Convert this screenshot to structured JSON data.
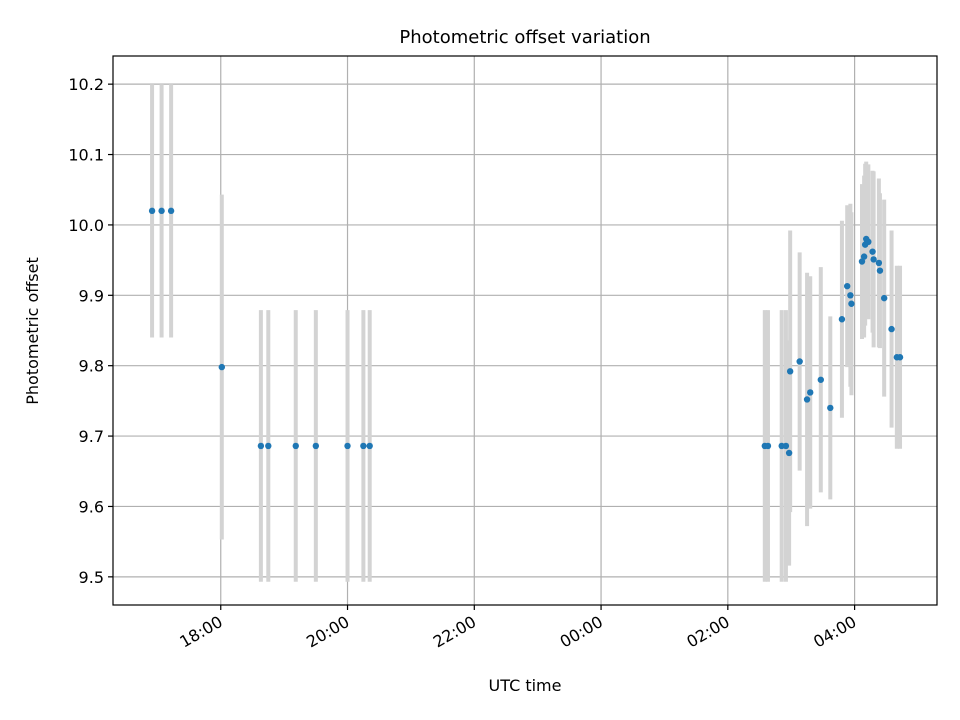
{
  "chart_data": {
    "type": "scatter",
    "title": "Photometric offset variation",
    "xlabel": "UTC time",
    "ylabel": "Photometric offset",
    "xlim_hours": [
      16.3,
      29.3
    ],
    "ylim": [
      9.46,
      10.24
    ],
    "x_ticks": [
      {
        "h": 18,
        "label": "18:00"
      },
      {
        "h": 20,
        "label": "20:00"
      },
      {
        "h": 22,
        "label": "22:00"
      },
      {
        "h": 24,
        "label": "00:00"
      },
      {
        "h": 26,
        "label": "02:00"
      },
      {
        "h": 28,
        "label": "04:00"
      }
    ],
    "y_ticks": [
      {
        "v": 9.5,
        "label": "9.5"
      },
      {
        "v": 9.6,
        "label": "9.6"
      },
      {
        "v": 9.7,
        "label": "9.7"
      },
      {
        "v": 9.8,
        "label": "9.8"
      },
      {
        "v": 9.9,
        "label": "9.9"
      },
      {
        "v": 10.0,
        "label": "10.0"
      },
      {
        "v": 10.1,
        "label": "10.1"
      },
      {
        "v": 10.2,
        "label": "10.2"
      }
    ],
    "grid": true,
    "colors": {
      "points": "#1f77b4",
      "errorbars": "#d3d3d3"
    },
    "points": [
      {
        "t": "16:55",
        "y": 10.02,
        "err": 0.18
      },
      {
        "t": "17:04",
        "y": 10.02,
        "err": 0.18
      },
      {
        "t": "17:13",
        "y": 10.02,
        "err": 0.18
      },
      {
        "t": "18:01",
        "y": 9.798,
        "err": 0.245
      },
      {
        "t": "18:38",
        "y": 9.686,
        "err": 0.193
      },
      {
        "t": "18:45",
        "y": 9.686,
        "err": 0.193
      },
      {
        "t": "19:11",
        "y": 9.686,
        "err": 0.193
      },
      {
        "t": "19:30",
        "y": 9.686,
        "err": 0.193
      },
      {
        "t": "20:00",
        "y": 9.686,
        "err": 0.193
      },
      {
        "t": "20:15",
        "y": 9.686,
        "err": 0.193
      },
      {
        "t": "20:21",
        "y": 9.686,
        "err": 0.193
      },
      {
        "t": "02:35",
        "y": 9.686,
        "err": 0.193
      },
      {
        "t": "02:38",
        "y": 9.686,
        "err": 0.193
      },
      {
        "t": "02:51",
        "y": 9.686,
        "err": 0.193
      },
      {
        "t": "02:55",
        "y": 9.686,
        "err": 0.193
      },
      {
        "t": "02:58",
        "y": 9.676,
        "err": 0.16
      },
      {
        "t": "02:59",
        "y": 9.792,
        "err": 0.2
      },
      {
        "t": "03:08",
        "y": 9.806,
        "err": 0.155
      },
      {
        "t": "03:15",
        "y": 9.752,
        "err": 0.18
      },
      {
        "t": "03:18",
        "y": 9.762,
        "err": 0.165
      },
      {
        "t": "03:28",
        "y": 9.78,
        "err": 0.16
      },
      {
        "t": "03:37",
        "y": 9.74,
        "err": 0.13
      },
      {
        "t": "03:48",
        "y": 9.866,
        "err": 0.14
      },
      {
        "t": "03:53",
        "y": 9.913,
        "err": 0.115
      },
      {
        "t": "03:56",
        "y": 9.9,
        "err": 0.13
      },
      {
        "t": "03:57",
        "y": 9.888,
        "err": 0.13
      },
      {
        "t": "04:07",
        "y": 9.948,
        "err": 0.11
      },
      {
        "t": "04:09",
        "y": 9.955,
        "err": 0.115
      },
      {
        "t": "04:10",
        "y": 9.972,
        "err": 0.115
      },
      {
        "t": "04:11",
        "y": 9.98,
        "err": 0.11
      },
      {
        "t": "04:13",
        "y": 9.976,
        "err": 0.11
      },
      {
        "t": "04:17",
        "y": 9.962,
        "err": 0.115
      },
      {
        "t": "04:18",
        "y": 9.951,
        "err": 0.125
      },
      {
        "t": "04:23",
        "y": 9.946,
        "err": 0.12
      },
      {
        "t": "04:24",
        "y": 9.935,
        "err": 0.11
      },
      {
        "t": "04:28",
        "y": 9.896,
        "err": 0.14
      },
      {
        "t": "04:35",
        "y": 9.852,
        "err": 0.14
      },
      {
        "t": "04:40",
        "y": 9.812,
        "err": 0.13
      },
      {
        "t": "04:43",
        "y": 9.812,
        "err": 0.13
      }
    ]
  }
}
